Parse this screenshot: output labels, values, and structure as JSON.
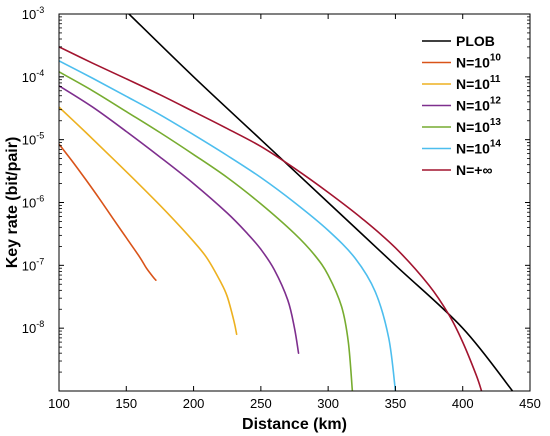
{
  "chart_data": {
    "type": "line",
    "xlabel": "Distance (km)",
    "ylabel": "Key rate (bit/pair)",
    "xlim": [
      100,
      450
    ],
    "ylim": [
      1e-09,
      0.001
    ],
    "yscale": "log",
    "grid": false,
    "legend_position": "top-right",
    "x_ticks": [
      100,
      150,
      200,
      250,
      300,
      350,
      400,
      450
    ],
    "x_tick_labels": [
      "100",
      "150",
      "200",
      "250",
      "300",
      "350",
      "400",
      "450"
    ],
    "y_ticks": [
      1e-08,
      1e-07,
      1e-06,
      1e-05,
      0.0001,
      0.001
    ],
    "y_tick_labels": [
      {
        "base": "10",
        "exp": "-8"
      },
      {
        "base": "10",
        "exp": "-7"
      },
      {
        "base": "10",
        "exp": "-6"
      },
      {
        "base": "10",
        "exp": "-5"
      },
      {
        "base": "10",
        "exp": "-4"
      },
      {
        "base": "10",
        "exp": "-3"
      }
    ],
    "series": [
      {
        "name": "PLOB",
        "legend": {
          "main": "PLOB",
          "sup": ""
        },
        "color": "#000000",
        "x": [
          152,
          200,
          250,
          300,
          350,
          400,
          437
        ],
        "y": [
          0.001,
          0.0001,
          1e-05,
          1e-06,
          1e-07,
          1e-08,
          1e-09
        ]
      },
      {
        "name": "N=10^10",
        "legend": {
          "main": "N=10",
          "sup": "10"
        },
        "color": "#d95319",
        "x": [
          100,
          110,
          120,
          130,
          140,
          150,
          160,
          165,
          170,
          172
        ],
        "y": [
          8.5e-06,
          4.5e-06,
          2.3e-06,
          1.15e-06,
          5.6e-07,
          2.75e-07,
          1.35e-07,
          9e-08,
          6.5e-08,
          5.8e-08
        ]
      },
      {
        "name": "N=10^11",
        "legend": {
          "main": "N=10",
          "sup": "11"
        },
        "color": "#edb120",
        "x": [
          100,
          120,
          140,
          160,
          180,
          200,
          210,
          220,
          225,
          230,
          232
        ],
        "y": [
          3.3e-05,
          1.3e-05,
          5e-06,
          1.9e-06,
          7e-07,
          2.4e-07,
          1.3e-07,
          5.5e-08,
          3.2e-08,
          1.3e-08,
          8e-09
        ]
      },
      {
        "name": "N=10^12",
        "legend": {
          "main": "N=10",
          "sup": "12"
        },
        "color": "#7e2f8e",
        "x": [
          100,
          125,
          150,
          175,
          200,
          225,
          240,
          250,
          260,
          270,
          275,
          278
        ],
        "y": [
          7.2e-05,
          3.3e-05,
          1.35e-05,
          5.3e-06,
          2e-06,
          6.8e-07,
          3.2e-07,
          1.8e-07,
          8.5e-08,
          2.8e-08,
          1e-08,
          4e-09
        ]
      },
      {
        "name": "N=10^13",
        "legend": {
          "main": "N=10",
          "sup": "13"
        },
        "color": "#77ac30",
        "x": [
          100,
          125,
          150,
          175,
          200,
          225,
          250,
          275,
          290,
          300,
          310,
          315,
          318
        ],
        "y": [
          0.00012,
          6e-05,
          2.8e-05,
          1.3e-05,
          5.8e-06,
          2.5e-06,
          9.5e-07,
          3.2e-07,
          1.45e-07,
          7e-08,
          2.2e-08,
          6e-09,
          1e-09
        ]
      },
      {
        "name": "N=10^14",
        "legend": {
          "main": "N=10",
          "sup": "14"
        },
        "color": "#4dbeee",
        "x": [
          100,
          125,
          150,
          175,
          200,
          225,
          250,
          275,
          300,
          320,
          335,
          345,
          350
        ],
        "y": [
          0.00018,
          9.5e-05,
          4.9e-05,
          2.5e-05,
          1.2e-05,
          5.6e-06,
          2.5e-06,
          1e-06,
          3.6e-07,
          1.3e-07,
          3.8e-08,
          7e-09,
          1e-09
        ]
      },
      {
        "name": "N=+∞",
        "legend": {
          "main": "N=+∞",
          "sup": ""
        },
        "color": "#a2142f",
        "x": [
          100,
          125,
          150,
          175,
          200,
          225,
          250,
          275,
          300,
          325,
          350,
          375,
          390,
          400,
          410,
          414
        ],
        "y": [
          0.0003,
          0.000165,
          9.3e-05,
          5.2e-05,
          2.8e-05,
          1.5e-05,
          7.8e-06,
          3.5e-06,
          1.45e-06,
          5.6e-07,
          1.9e-07,
          4.8e-08,
          1.6e-08,
          6e-09,
          1.8e-09,
          1e-09
        ]
      }
    ]
  }
}
